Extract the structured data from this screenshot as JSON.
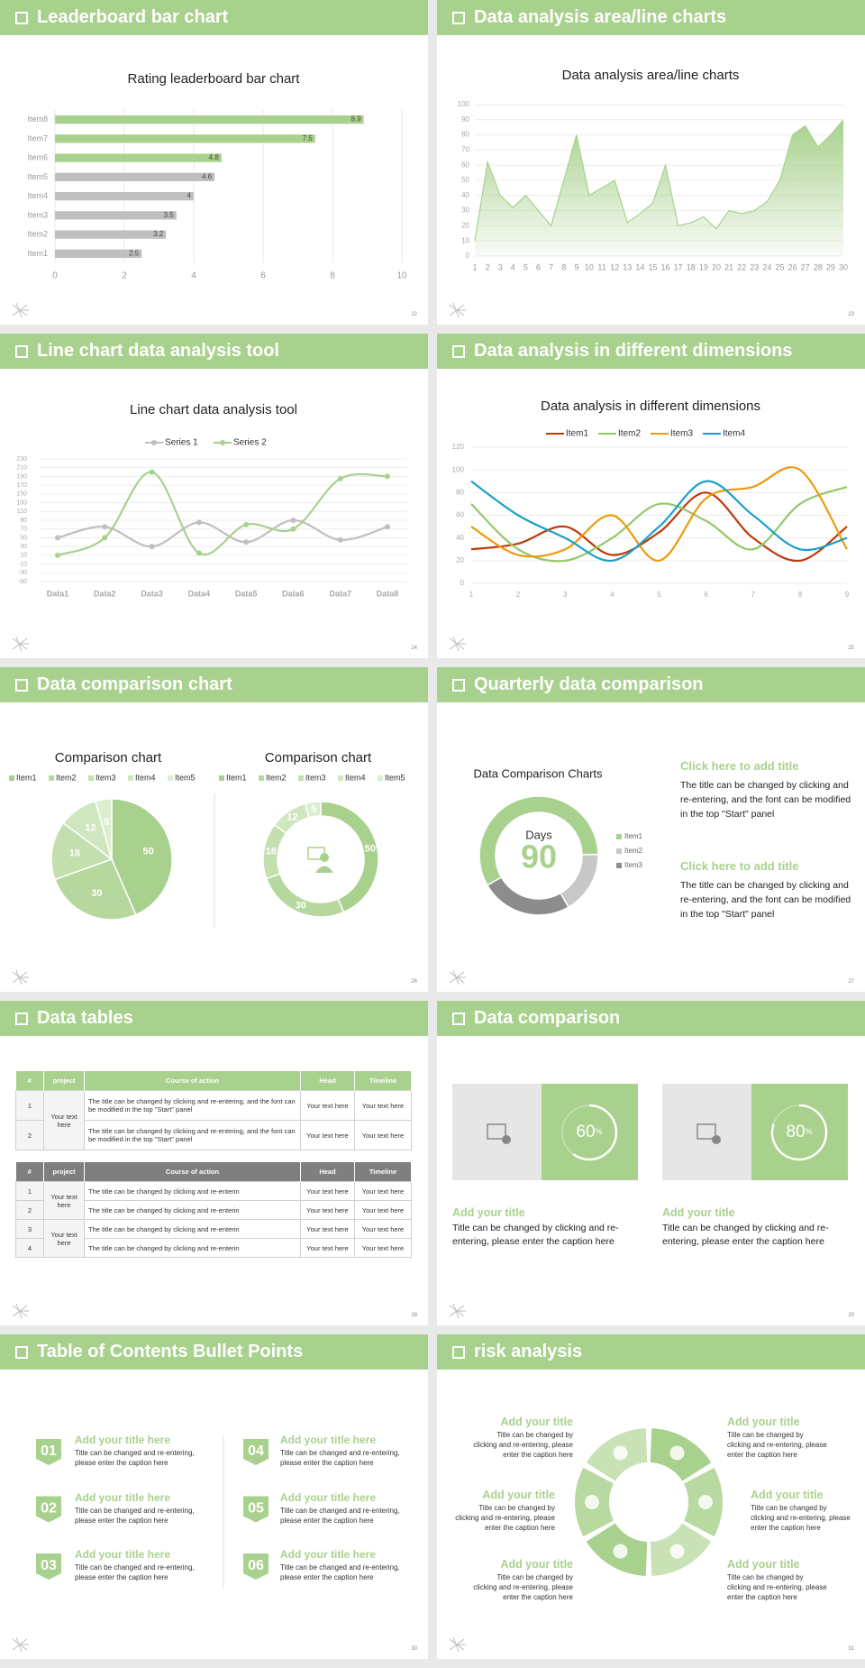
{
  "slides": [
    {
      "heading": "Leaderboard bar chart",
      "page": 22
    },
    {
      "heading": "Data analysis area/line charts",
      "page": 23
    },
    {
      "heading": "Line chart data analysis tool",
      "page": 24
    },
    {
      "heading": "Data analysis in different dimensions",
      "page": 25
    },
    {
      "heading": "Data comparison chart",
      "page": 26
    },
    {
      "heading": "Quarterly data comparison",
      "page": 27,
      "blocks": [
        {
          "title": "Click here to add title",
          "text": "The title can be changed by clicking and re-entering, and the font can be modified in the top \"Start\" panel"
        },
        {
          "title": "Click here to add title",
          "text": "The title can be changed by clicking and re-entering, and the font can be modified in the top \"Start\" panel"
        }
      ]
    },
    {
      "heading": "Data tables",
      "page": 28,
      "tables": [
        {
          "columns": [
            "#",
            "project",
            "Course of action",
            "Head",
            "Timeline"
          ],
          "rows": [
            [
              1,
              "Your text here",
              "The title can be changed by clicking and re-entering, and the font can be modified in the top \"Start\" panel",
              "Your text here",
              "Your text here"
            ],
            [
              2,
              null,
              "The title can be changed by clicking and re-entering, and the font can be modified in the top \"Start\" panel",
              "Your text here",
              "Your text here"
            ]
          ]
        },
        {
          "columns": [
            "#",
            "project",
            "Course of action",
            "Head",
            "Timeline"
          ],
          "rows": [
            [
              1,
              "Your text here",
              "The title can be changed by clicking and re-enterin",
              "Your text here",
              "Your text here"
            ],
            [
              2,
              null,
              "The title can be changed by clicking and re-enterin",
              "Your text here",
              "Your text here"
            ],
            [
              3,
              "Your text here",
              "The title can be changed by clicking and re-enterin",
              "Your text here",
              "Your text here"
            ],
            [
              4,
              null,
              "The title can be changed by clicking and re-enterin",
              "Your text here",
              "Your text here"
            ]
          ]
        }
      ]
    },
    {
      "heading": "Data comparison",
      "page": 29,
      "cards": [
        {
          "value": 60,
          "unit": "%",
          "title": "Add your title",
          "text": "Title can be changed by clicking and re-entering, please enter the caption here"
        },
        {
          "value": 80,
          "unit": "%",
          "title": "Add your title",
          "text": "Title can be changed by clicking and re-entering, please enter the caption here"
        }
      ]
    },
    {
      "heading": "Table of Contents Bullet Points",
      "page": 30,
      "items": [
        {
          "number": "01",
          "title": "Add your title here",
          "text": "Title can be changed and re-entering, please enter the caption here"
        },
        {
          "number": "02",
          "title": "Add your title here",
          "text": "Title can be changed and re-entering, please enter the caption here"
        },
        {
          "number": "03",
          "title": "Add your title here",
          "text": "Title can be changed and re-entering, please enter the caption here"
        },
        {
          "number": "04",
          "title": "Add your title here",
          "text": "Title can be changed and re-entering, please enter the caption here"
        },
        {
          "number": "05",
          "title": "Add your title here",
          "text": "Title can be changed and re-entering, please enter the caption here"
        },
        {
          "number": "06",
          "title": "Add your title here",
          "text": "Title can be changed and re-entering, please enter the caption here"
        }
      ]
    },
    {
      "heading": "risk analysis",
      "page": 31,
      "items": [
        {
          "title": "Add your title",
          "text": "Title can be changed by clicking and re-entering, please enter the caption here"
        },
        {
          "title": "Add your title",
          "text": "Title can be changed by clicking and re-entering, please enter the caption here"
        },
        {
          "title": "Add your title",
          "text": "Title can be changed by clicking and re-entering, please enter the caption here"
        },
        {
          "title": "Add your title",
          "text": "Title can be changed by clicking and re-entering, please enter the caption here"
        },
        {
          "title": "Add your title",
          "text": "Title can be changed by clicking and re-entering, please enter the caption here"
        },
        {
          "title": "Add your title",
          "text": "Title can be changed by clicking and re-entering, please enter the caption here"
        }
      ]
    }
  ],
  "chart_data": [
    {
      "type": "bar",
      "orientation": "horizontal",
      "title": "Rating leaderboard bar chart",
      "categories": [
        "Item1",
        "Item2",
        "Item3",
        "Item4",
        "Item5",
        "Item6",
        "Item7",
        "Item8"
      ],
      "values": [
        2.5,
        3.2,
        3.5,
        4,
        4.6,
        4.8,
        7.5,
        8.9
      ],
      "colors": [
        "#bfbfbf",
        "#bfbfbf",
        "#bfbfbf",
        "#bfbfbf",
        "#bfbfbf",
        "#a9d18e",
        "#a9d18e",
        "#a9d18e"
      ],
      "xlim": [
        0,
        10
      ],
      "xticks": [
        0,
        2,
        4,
        6,
        8,
        10
      ],
      "grid": true,
      "data_labels": true
    },
    {
      "type": "area",
      "title": "Data analysis area/line charts",
      "x": [
        1,
        2,
        3,
        4,
        5,
        6,
        7,
        8,
        9,
        10,
        11,
        12,
        13,
        14,
        15,
        16,
        17,
        18,
        19,
        20,
        21,
        22,
        23,
        24,
        25,
        26,
        27,
        28,
        29,
        30
      ],
      "values": [
        10,
        62,
        40,
        32,
        40,
        30,
        20,
        50,
        80,
        40,
        45,
        50,
        22,
        28,
        35,
        60,
        20,
        22,
        26,
        18,
        30,
        28,
        30,
        36,
        50,
        80,
        86,
        72,
        80,
        90
      ],
      "color": "#a9d18e",
      "xlim": [
        1,
        30
      ],
      "xticks": [
        1,
        2,
        3,
        4,
        5,
        6,
        7,
        8,
        9,
        10,
        11,
        12,
        13,
        14,
        15,
        16,
        17,
        18,
        19,
        20,
        21,
        22,
        23,
        24,
        25,
        26,
        27,
        28,
        29,
        30
      ],
      "ylim": [
        0,
        100
      ],
      "yticks": [
        0,
        10,
        20,
        30,
        40,
        50,
        60,
        70,
        80,
        90,
        100
      ],
      "grid": true
    },
    {
      "type": "line",
      "title": "Line chart data analysis tool",
      "categories": [
        "Data1",
        "Data2",
        "Data3",
        "Data4",
        "Data5",
        "Data6",
        "Data7",
        "Data8"
      ],
      "series": [
        {
          "name": "Series 1",
          "color": "#bfbfbf",
          "values": [
            50,
            75,
            30,
            85,
            40,
            90,
            45,
            75
          ]
        },
        {
          "name": "Series 2",
          "color": "#a9d18e",
          "values": [
            10,
            50,
            200,
            15,
            80,
            70,
            185,
            190
          ]
        }
      ],
      "ylim": [
        -50,
        230
      ],
      "yticks": [
        -50,
        -30,
        -10,
        10,
        30,
        50,
        70,
        90,
        110,
        130,
        150,
        170,
        190,
        210,
        230
      ],
      "grid": true,
      "smooth": true,
      "markers": true,
      "legend": "top"
    },
    {
      "type": "line",
      "title": "Data analysis in different dimensions",
      "x": [
        1,
        2,
        3,
        4,
        5,
        6,
        7,
        8,
        9
      ],
      "xlim": [
        1,
        9
      ],
      "xticks": [
        1,
        2,
        3,
        4,
        5,
        6,
        7,
        8,
        9
      ],
      "series": [
        {
          "name": "Item1",
          "color": "#c0390b",
          "values": [
            30,
            35,
            50,
            25,
            45,
            80,
            40,
            20,
            50
          ]
        },
        {
          "name": "Item2",
          "color": "#92c96a",
          "values": [
            70,
            30,
            20,
            40,
            70,
            55,
            30,
            70,
            85
          ]
        },
        {
          "name": "Item3",
          "color": "#ee9a0c",
          "values": [
            50,
            25,
            30,
            60,
            20,
            75,
            85,
            100,
            30
          ]
        },
        {
          "name": "Item4",
          "color": "#1ba1c7",
          "values": [
            90,
            60,
            40,
            20,
            50,
            90,
            60,
            30,
            40
          ]
        }
      ],
      "ylim": [
        0,
        120
      ],
      "yticks": [
        0,
        20,
        40,
        60,
        80,
        100,
        120
      ],
      "grid": true,
      "smooth": true,
      "markers": false,
      "legend": "top"
    },
    {
      "type": "pie",
      "title": "Comparison chart",
      "categories": [
        "Item1",
        "Item2",
        "Item3",
        "Item4",
        "Item5"
      ],
      "values": [
        50,
        30,
        18,
        12,
        5
      ],
      "colors": [
        "#a9d18e",
        "#b6d89e",
        "#c3dfae",
        "#d0e6bf",
        "#dcedd0"
      ],
      "legend": "top",
      "data_labels": true
    },
    {
      "type": "donut",
      "title": "Comparison chart",
      "categories": [
        "Item1",
        "Item2",
        "Item3",
        "Item4",
        "Item5"
      ],
      "values": [
        50,
        30,
        18,
        12,
        5
      ],
      "colors": [
        "#a9d18e",
        "#b6d89e",
        "#c3dfae",
        "#d0e6bf",
        "#dcedd0"
      ],
      "legend": "top",
      "data_labels": true
    },
    {
      "type": "donut",
      "title": "Data Comparison Charts",
      "categories": [
        "Item1",
        "Item2",
        "Item3"
      ],
      "values": [
        58,
        17,
        25
      ],
      "colors": [
        "#a9d18e",
        "#c8c8c8",
        "#8c8c8c"
      ],
      "start_angle": 240,
      "center_label": "Days",
      "center_value": 90,
      "legend": "right",
      "data_labels": false
    }
  ]
}
